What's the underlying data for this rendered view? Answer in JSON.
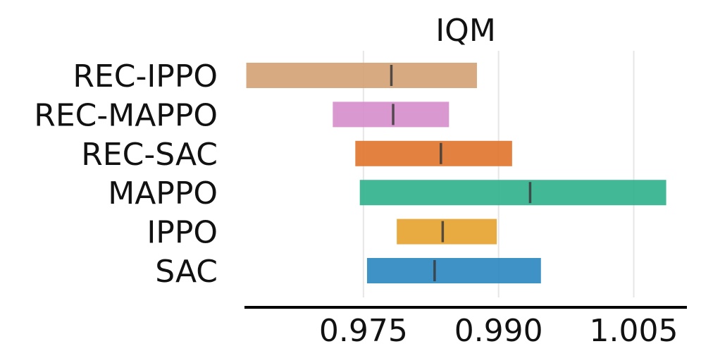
{
  "chart_data": {
    "type": "interval",
    "title": "IQM",
    "xlabel": "",
    "ylabel": "",
    "xlim": [
      0.9618,
      1.0109
    ],
    "xticks": [
      0.975,
      0.99,
      1.005
    ],
    "xtick_labels": [
      "0.975",
      "0.990",
      "1.005"
    ],
    "grid": true,
    "legend": "none",
    "categories": [
      "REC-IPPO",
      "REC-MAPPO",
      "REC-SAC",
      "MAPPO",
      "IPPO",
      "SAC"
    ],
    "low": [
      0.962,
      0.9716,
      0.9741,
      0.9746,
      0.9787,
      0.9754
    ],
    "high": [
      0.9876,
      0.9845,
      0.9915,
      1.0086,
      0.9898,
      0.9947
    ],
    "median": [
      0.9781,
      0.9783,
      0.9836,
      0.9935,
      0.9838,
      0.9829
    ],
    "colors": [
      "#d4a174",
      "#d68dcc",
      "#e0732c",
      "#2fb08c",
      "#e6a22d",
      "#2a86bf"
    ]
  }
}
